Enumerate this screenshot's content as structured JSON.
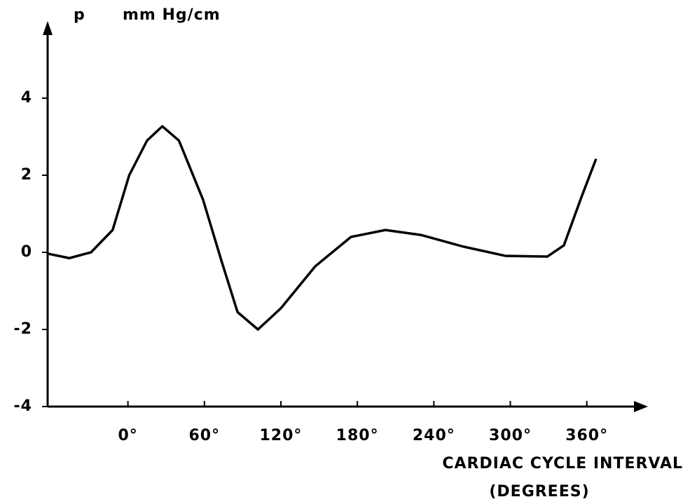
{
  "chart_data": {
    "type": "line",
    "y_label": [
      "p",
      "mm Hg/cm"
    ],
    "x_label": [
      "CARDIAC CYCLE INTERVAL",
      "(DEGREES)"
    ],
    "x": [
      -62,
      -46,
      -29,
      -12,
      1,
      15,
      27,
      40,
      59,
      73,
      86,
      102,
      120,
      147,
      175,
      202,
      230,
      263,
      296,
      329,
      342,
      356,
      367
    ],
    "series": [
      {
        "color": "#000000",
        "values": [
          -0.04,
          -0.15,
          0,
          0.58,
          2.0,
          2.9,
          3.27,
          2.9,
          1.36,
          -0.18,
          -1.55,
          -2.0,
          -1.45,
          -0.36,
          0.4,
          0.58,
          0.45,
          0.15,
          -0.09,
          -0.11,
          0.18,
          1.45,
          2.4
        ]
      }
    ],
    "xlim": [
      -63,
      408
    ],
    "xticks": [
      {
        "value": 0,
        "label": "0°"
      },
      {
        "value": 60,
        "label": "60°"
      },
      {
        "value": 120,
        "label": "120°"
      },
      {
        "value": 180,
        "label": "180°"
      },
      {
        "value": 240,
        "label": "240°"
      },
      {
        "value": 300,
        "label": "300°"
      },
      {
        "value": 360,
        "label": "360°"
      }
    ],
    "ylim": [
      -4,
      6
    ],
    "yticks": [
      -4,
      -2,
      0,
      2,
      4
    ],
    "grid": false
  }
}
